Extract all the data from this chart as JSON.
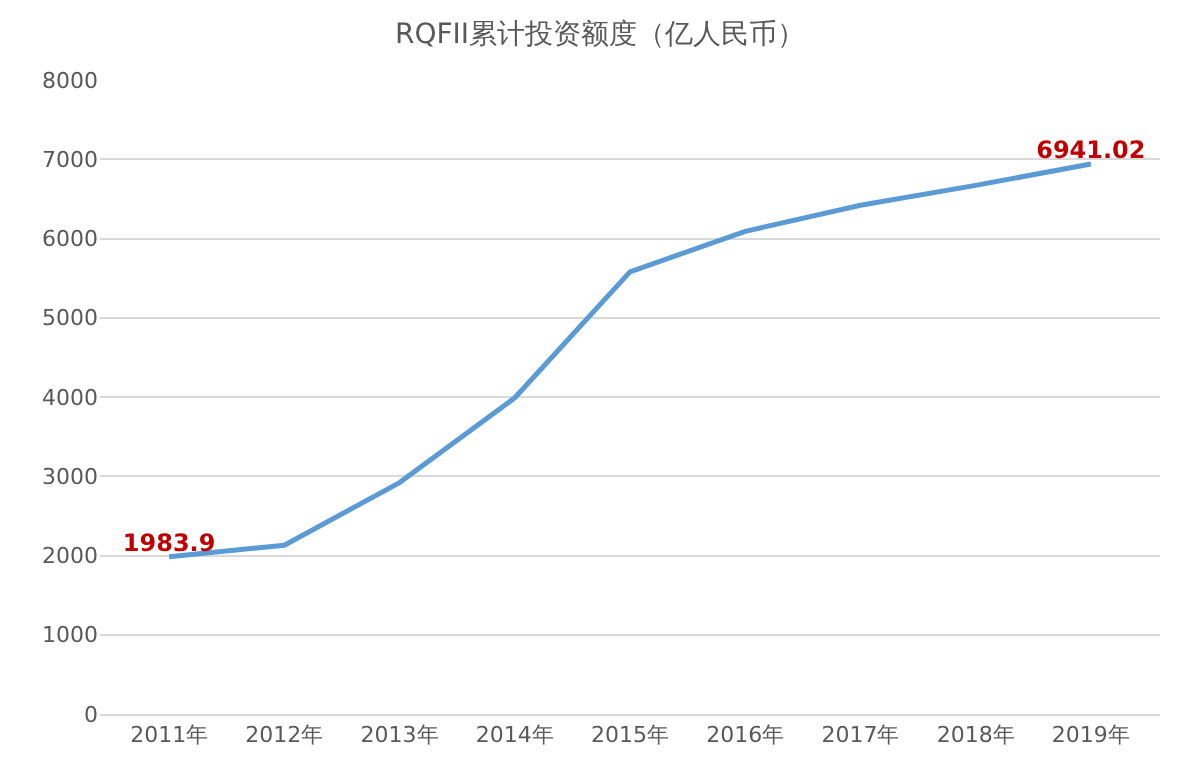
{
  "chart_data": {
    "type": "line",
    "title": "RQFII累计投资额度（亿人民币）",
    "categories": [
      "2011年",
      "2012年",
      "2013年",
      "2014年",
      "2015年",
      "2016年",
      "2017年",
      "2018年",
      "2019年"
    ],
    "series": [
      {
        "color": "#5b9bd5",
        "values": [
          1983.9,
          2130,
          2920,
          3990,
          5580,
          6090,
          6420,
          6670,
          6941.02
        ],
        "value_labels": [
          "1983.9",
          null,
          null,
          null,
          null,
          null,
          null,
          null,
          "6941.02"
        ]
      }
    ],
    "ylim": [
      0,
      8000
    ],
    "yticks": [
      0,
      1000,
      2000,
      3000,
      4000,
      5000,
      6000,
      7000,
      8000
    ],
    "grid": "y",
    "legend": false,
    "marker": "none",
    "line_style": "solid"
  }
}
